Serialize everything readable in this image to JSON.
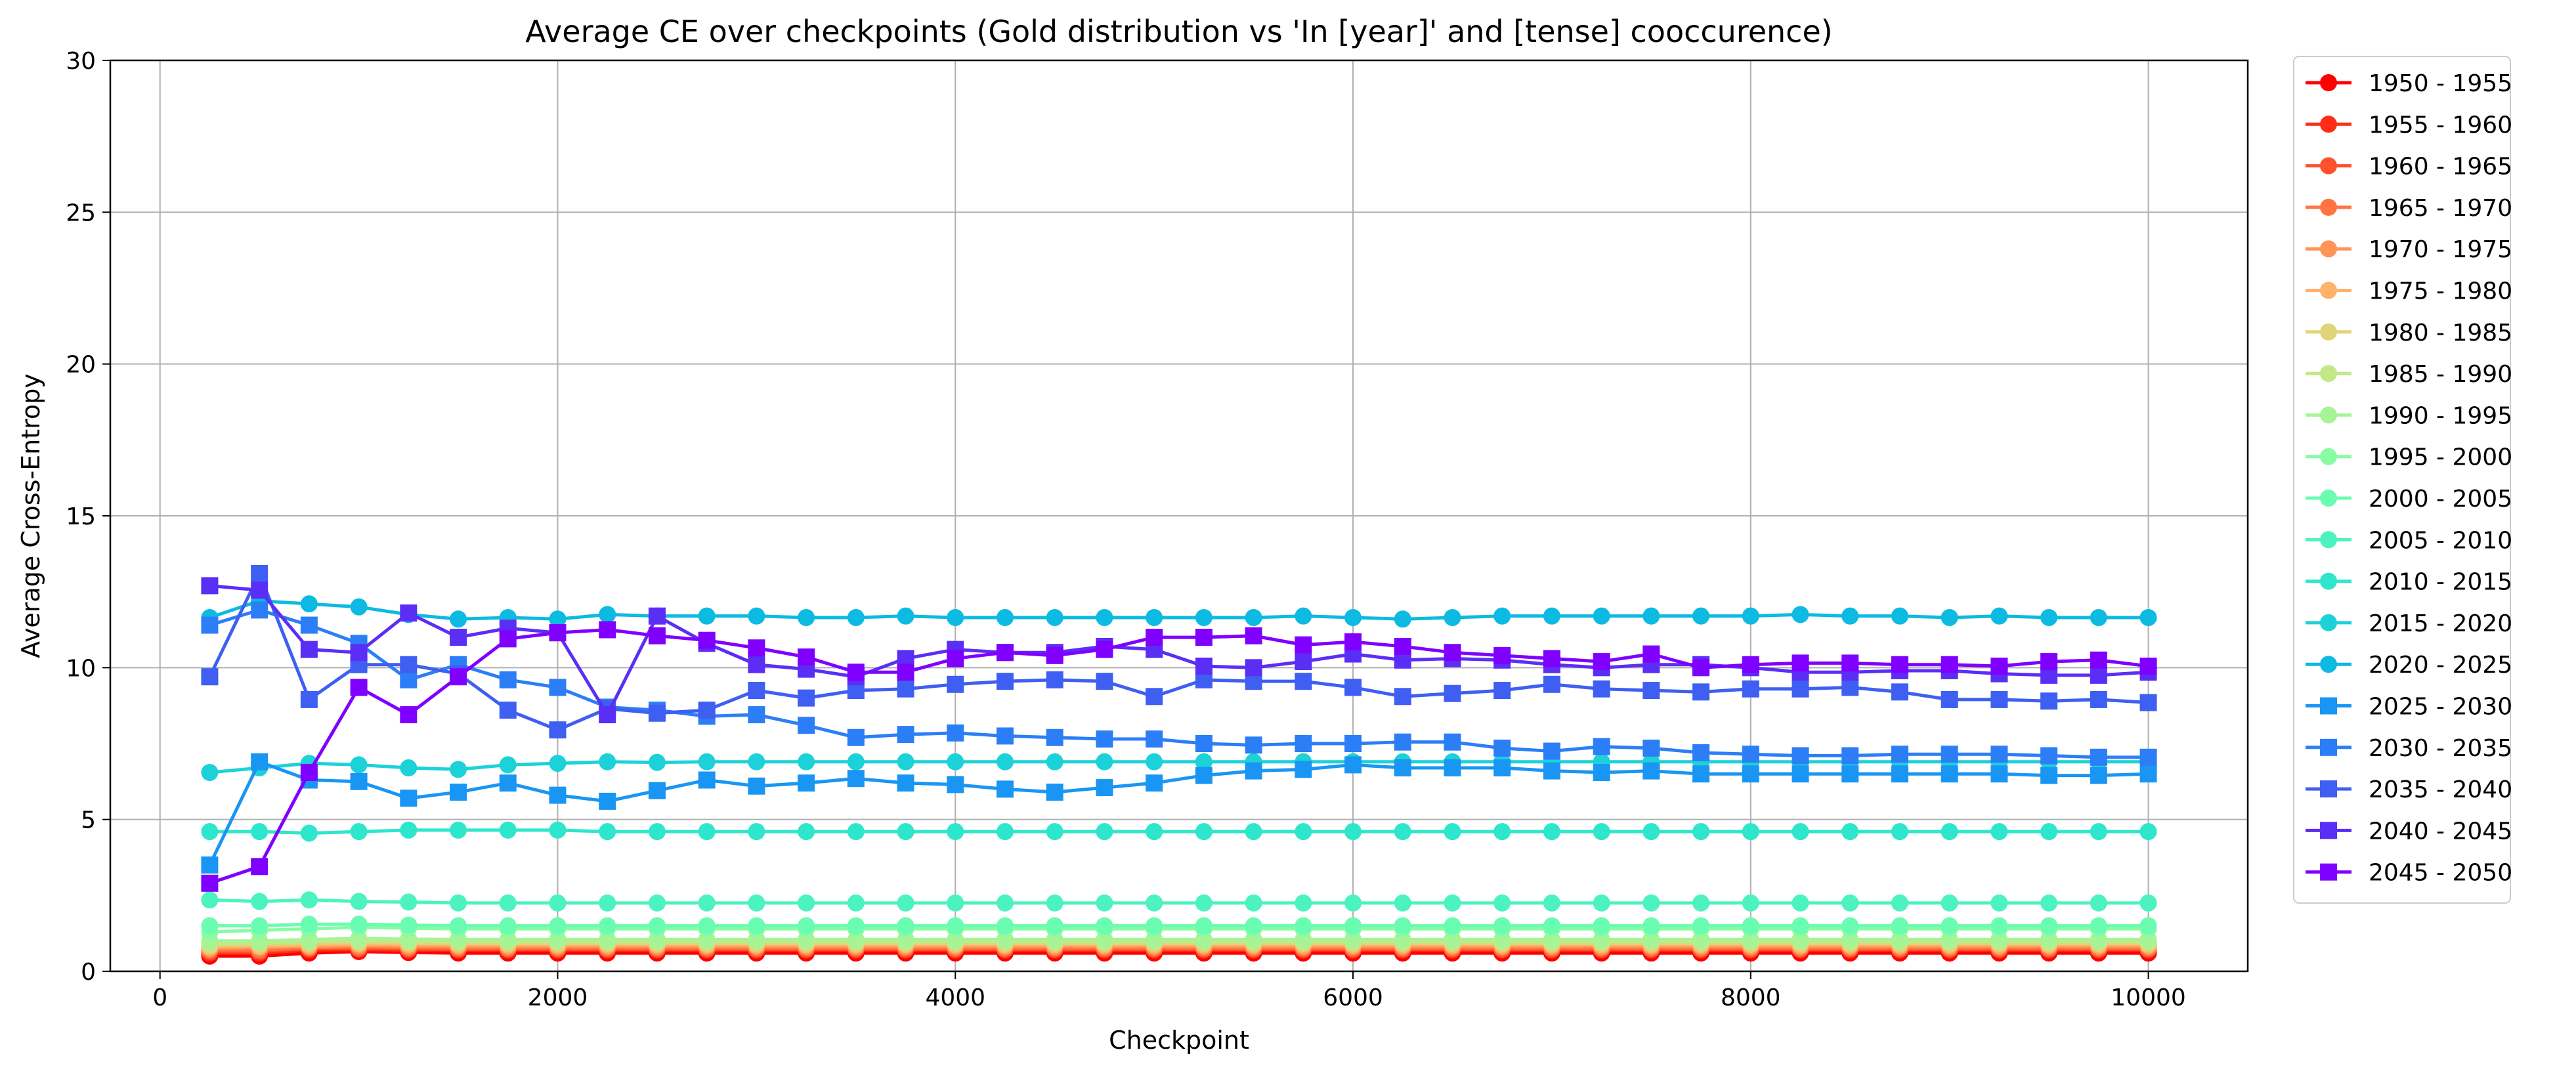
{
  "chart_data": {
    "type": "line",
    "title": "Average CE over checkpoints (Gold distribution vs 'In [year]' and [tense] cooccurence)",
    "xlabel": "Checkpoint",
    "ylabel": "Average Cross-Entropy",
    "xlim": [
      -250,
      10500
    ],
    "ylim": [
      0,
      30
    ],
    "xticks": [
      0,
      2000,
      4000,
      6000,
      8000,
      10000
    ],
    "yticks": [
      0,
      5,
      10,
      15,
      20,
      25,
      30
    ],
    "grid": true,
    "legend_position": "outside-right",
    "x": [
      250,
      500,
      750,
      1000,
      1250,
      1500,
      1750,
      2000,
      2250,
      2500,
      2750,
      3000,
      3250,
      3500,
      3750,
      4000,
      4250,
      4500,
      4750,
      5000,
      5250,
      5500,
      5750,
      6000,
      6250,
      6500,
      6750,
      7000,
      7250,
      7500,
      7750,
      8000,
      8250,
      8500,
      8750,
      9000,
      9250,
      9500,
      9750,
      10000
    ],
    "series": [
      {
        "name": "1950 - 1955",
        "color": "#ff0000",
        "marker": "circle",
        "values": [
          0.5,
          0.5,
          0.6,
          0.65,
          0.62,
          0.6,
          0.6,
          0.6,
          0.6,
          0.6,
          0.6,
          0.6,
          0.6,
          0.6,
          0.6,
          0.6,
          0.6,
          0.6,
          0.6,
          0.6,
          0.6,
          0.6,
          0.6,
          0.6,
          0.6,
          0.6,
          0.6,
          0.6,
          0.6,
          0.6,
          0.6,
          0.6,
          0.6,
          0.6,
          0.6,
          0.6,
          0.6,
          0.6,
          0.6,
          0.6
        ]
      },
      {
        "name": "1955 - 1960",
        "color": "#ff2d17",
        "marker": "circle",
        "values": [
          0.6,
          0.6,
          0.7,
          0.72,
          0.7,
          0.7,
          0.7,
          0.7,
          0.7,
          0.7,
          0.7,
          0.7,
          0.7,
          0.7,
          0.7,
          0.7,
          0.7,
          0.7,
          0.7,
          0.7,
          0.7,
          0.7,
          0.7,
          0.7,
          0.7,
          0.7,
          0.7,
          0.7,
          0.7,
          0.7,
          0.7,
          0.7,
          0.7,
          0.7,
          0.7,
          0.7,
          0.7,
          0.7,
          0.7,
          0.7
        ]
      },
      {
        "name": "1960 - 1965",
        "color": "#ff512c",
        "marker": "circle",
        "values": [
          0.65,
          0.65,
          0.75,
          0.75,
          0.74,
          0.73,
          0.73,
          0.73,
          0.73,
          0.73,
          0.73,
          0.73,
          0.73,
          0.73,
          0.73,
          0.73,
          0.73,
          0.73,
          0.73,
          0.73,
          0.73,
          0.73,
          0.73,
          0.73,
          0.73,
          0.73,
          0.73,
          0.73,
          0.73,
          0.73,
          0.73,
          0.73,
          0.73,
          0.73,
          0.73,
          0.73,
          0.73,
          0.73,
          0.73,
          0.73
        ]
      },
      {
        "name": "1965 - 1970",
        "color": "#ff7442",
        "marker": "circle",
        "values": [
          0.7,
          0.7,
          0.78,
          0.8,
          0.78,
          0.77,
          0.77,
          0.77,
          0.77,
          0.77,
          0.77,
          0.77,
          0.77,
          0.77,
          0.77,
          0.77,
          0.77,
          0.77,
          0.77,
          0.77,
          0.77,
          0.77,
          0.77,
          0.77,
          0.77,
          0.77,
          0.77,
          0.77,
          0.77,
          0.77,
          0.77,
          0.77,
          0.77,
          0.77,
          0.77,
          0.77,
          0.77,
          0.77,
          0.77,
          0.77
        ]
      },
      {
        "name": "1970 - 1975",
        "color": "#ff9456",
        "marker": "circle",
        "values": [
          0.75,
          0.78,
          0.82,
          0.85,
          0.83,
          0.82,
          0.82,
          0.82,
          0.82,
          0.82,
          0.82,
          0.82,
          0.82,
          0.82,
          0.82,
          0.82,
          0.82,
          0.82,
          0.82,
          0.82,
          0.82,
          0.82,
          0.82,
          0.82,
          0.82,
          0.82,
          0.82,
          0.82,
          0.82,
          0.82,
          0.82,
          0.82,
          0.82,
          0.82,
          0.82,
          0.82,
          0.82,
          0.82,
          0.82,
          0.82
        ]
      },
      {
        "name": "1975 - 1980",
        "color": "#ffb26a",
        "marker": "circle",
        "values": [
          0.8,
          0.82,
          0.86,
          0.9,
          0.88,
          0.87,
          0.87,
          0.87,
          0.87,
          0.87,
          0.87,
          0.87,
          0.87,
          0.87,
          0.87,
          0.87,
          0.87,
          0.87,
          0.87,
          0.87,
          0.87,
          0.87,
          0.87,
          0.87,
          0.87,
          0.87,
          0.87,
          0.87,
          0.87,
          0.87,
          0.87,
          0.87,
          0.87,
          0.87,
          0.87,
          0.87,
          0.87,
          0.87,
          0.87,
          0.87
        ]
      },
      {
        "name": "1980 - 1985",
        "color": "#e0d478",
        "marker": "circle",
        "values": [
          0.85,
          0.88,
          0.92,
          0.95,
          0.93,
          0.92,
          0.92,
          0.92,
          0.92,
          0.92,
          0.92,
          0.92,
          0.92,
          0.92,
          0.92,
          0.92,
          0.92,
          0.92,
          0.92,
          0.92,
          0.92,
          0.92,
          0.92,
          0.92,
          0.92,
          0.92,
          0.92,
          0.92,
          0.92,
          0.92,
          0.92,
          0.92,
          0.92,
          0.92,
          0.92,
          0.92,
          0.92,
          0.92,
          0.92,
          0.92
        ]
      },
      {
        "name": "1985 - 1990",
        "color": "#c4e887",
        "marker": "circle",
        "values": [
          0.9,
          0.93,
          0.98,
          1.0,
          0.98,
          0.97,
          0.97,
          0.97,
          0.97,
          0.97,
          0.97,
          0.97,
          0.97,
          0.97,
          0.97,
          0.97,
          0.97,
          0.97,
          0.97,
          0.97,
          0.97,
          0.97,
          0.97,
          0.97,
          0.97,
          0.97,
          0.97,
          0.97,
          0.97,
          0.97,
          0.97,
          0.97,
          0.97,
          0.97,
          0.97,
          0.97,
          0.97,
          0.97,
          0.97,
          0.97
        ]
      },
      {
        "name": "1990 - 1995",
        "color": "#a6f495",
        "marker": "circle",
        "values": [
          1.0,
          1.0,
          1.05,
          1.08,
          1.06,
          1.05,
          1.05,
          1.05,
          1.05,
          1.05,
          1.05,
          1.05,
          1.05,
          1.05,
          1.05,
          1.05,
          1.05,
          1.05,
          1.05,
          1.05,
          1.05,
          1.05,
          1.05,
          1.05,
          1.05,
          1.05,
          1.05,
          1.05,
          1.05,
          1.05,
          1.05,
          1.05,
          1.05,
          1.05,
          1.05,
          1.05,
          1.05,
          1.05,
          1.05,
          1.05
        ]
      },
      {
        "name": "1995 - 2000",
        "color": "#88fca3",
        "marker": "circle",
        "values": [
          1.3,
          1.35,
          1.4,
          1.45,
          1.42,
          1.4,
          1.4,
          1.4,
          1.4,
          1.4,
          1.4,
          1.4,
          1.4,
          1.4,
          1.4,
          1.4,
          1.4,
          1.4,
          1.4,
          1.4,
          1.4,
          1.4,
          1.4,
          1.4,
          1.4,
          1.4,
          1.4,
          1.4,
          1.4,
          1.4,
          1.4,
          1.4,
          1.4,
          1.4,
          1.4,
          1.4,
          1.4,
          1.4,
          1.4,
          1.4
        ]
      },
      {
        "name": "2000 - 2005",
        "color": "#6afcb1",
        "marker": "circle",
        "values": [
          1.5,
          1.5,
          1.55,
          1.55,
          1.52,
          1.5,
          1.5,
          1.5,
          1.5,
          1.5,
          1.5,
          1.5,
          1.5,
          1.5,
          1.5,
          1.5,
          1.5,
          1.5,
          1.5,
          1.5,
          1.5,
          1.5,
          1.5,
          1.5,
          1.5,
          1.5,
          1.5,
          1.5,
          1.5,
          1.5,
          1.5,
          1.5,
          1.5,
          1.5,
          1.5,
          1.5,
          1.5,
          1.5,
          1.5,
          1.5
        ]
      },
      {
        "name": "2005 - 2010",
        "color": "#4cf2bf",
        "marker": "circle",
        "values": [
          2.35,
          2.3,
          2.35,
          2.3,
          2.28,
          2.25,
          2.25,
          2.25,
          2.25,
          2.25,
          2.25,
          2.25,
          2.25,
          2.25,
          2.25,
          2.25,
          2.25,
          2.25,
          2.25,
          2.25,
          2.25,
          2.25,
          2.25,
          2.25,
          2.25,
          2.25,
          2.25,
          2.25,
          2.25,
          2.25,
          2.25,
          2.25,
          2.25,
          2.25,
          2.25,
          2.25,
          2.25,
          2.25,
          2.25,
          2.25
        ]
      },
      {
        "name": "2010 - 2015",
        "color": "#2ee6cc",
        "marker": "circle",
        "values": [
          4.6,
          4.6,
          4.55,
          4.6,
          4.65,
          4.65,
          4.65,
          4.65,
          4.6,
          4.6,
          4.6,
          4.6,
          4.6,
          4.6,
          4.6,
          4.6,
          4.6,
          4.6,
          4.6,
          4.6,
          4.6,
          4.6,
          4.6,
          4.6,
          4.6,
          4.6,
          4.6,
          4.6,
          4.6,
          4.6,
          4.6,
          4.6,
          4.6,
          4.6,
          4.6,
          4.6,
          4.6,
          4.6,
          4.6,
          4.6
        ]
      },
      {
        "name": "2015 - 2020",
        "color": "#1cd2d8",
        "marker": "circle",
        "values": [
          6.55,
          6.7,
          6.85,
          6.8,
          6.7,
          6.65,
          6.8,
          6.85,
          6.9,
          6.88,
          6.9,
          6.9,
          6.9,
          6.9,
          6.9,
          6.9,
          6.9,
          6.9,
          6.9,
          6.9,
          6.9,
          6.9,
          6.9,
          6.9,
          6.9,
          6.9,
          6.9,
          6.9,
          6.9,
          6.9,
          6.9,
          6.9,
          6.9,
          6.9,
          6.9,
          6.9,
          6.9,
          6.9,
          6.9,
          6.9
        ]
      },
      {
        "name": "2020 - 2025",
        "color": "#0cbae2",
        "marker": "circle",
        "values": [
          11.65,
          12.2,
          12.1,
          12.0,
          11.75,
          11.6,
          11.65,
          11.6,
          11.75,
          11.7,
          11.7,
          11.7,
          11.65,
          11.65,
          11.7,
          11.65,
          11.65,
          11.65,
          11.65,
          11.65,
          11.65,
          11.65,
          11.7,
          11.65,
          11.6,
          11.65,
          11.7,
          11.7,
          11.7,
          11.7,
          11.7,
          11.7,
          11.75,
          11.7,
          11.7,
          11.65,
          11.7,
          11.65,
          11.65,
          11.65
        ]
      },
      {
        "name": "2025 - 2030",
        "color": "#1996f3",
        "marker": "square",
        "values": [
          3.5,
          6.9,
          6.3,
          6.25,
          5.7,
          5.9,
          6.2,
          5.8,
          5.6,
          5.95,
          6.3,
          6.1,
          6.2,
          6.35,
          6.2,
          6.15,
          6.0,
          5.9,
          6.05,
          6.2,
          6.45,
          6.6,
          6.65,
          6.8,
          6.7,
          6.7,
          6.7,
          6.6,
          6.55,
          6.6,
          6.5,
          6.5,
          6.5,
          6.5,
          6.5,
          6.5,
          6.5,
          6.45,
          6.45,
          6.5
        ]
      },
      {
        "name": "2030 - 2035",
        "color": "#2c7ef7",
        "marker": "square",
        "values": [
          11.4,
          11.9,
          11.4,
          10.8,
          9.6,
          10.1,
          9.6,
          9.35,
          8.7,
          8.6,
          8.4,
          8.45,
          8.1,
          7.7,
          7.8,
          7.85,
          7.75,
          7.7,
          7.65,
          7.65,
          7.5,
          7.45,
          7.5,
          7.5,
          7.55,
          7.55,
          7.35,
          7.25,
          7.4,
          7.35,
          7.2,
          7.15,
          7.1,
          7.1,
          7.15,
          7.15,
          7.15,
          7.1,
          7.05,
          7.05
        ]
      },
      {
        "name": "2035 - 2040",
        "color": "#3e5ff2",
        "marker": "square",
        "values": [
          9.7,
          13.1,
          8.95,
          10.1,
          10.1,
          9.8,
          8.6,
          7.95,
          8.65,
          8.5,
          8.6,
          9.25,
          9.0,
          9.25,
          9.3,
          9.45,
          9.55,
          9.6,
          9.55,
          9.05,
          9.6,
          9.55,
          9.55,
          9.35,
          9.05,
          9.15,
          9.25,
          9.45,
          9.3,
          9.25,
          9.2,
          9.3,
          9.3,
          9.35,
          9.2,
          8.95,
          8.95,
          8.9,
          8.95,
          8.85
        ]
      },
      {
        "name": "2040 - 2045",
        "color": "#5b2ef6",
        "marker": "square",
        "values": [
          12.7,
          12.55,
          10.6,
          10.5,
          11.8,
          11.0,
          11.3,
          11.15,
          8.45,
          11.7,
          10.8,
          10.1,
          9.95,
          9.7,
          10.3,
          10.6,
          10.5,
          10.5,
          10.7,
          10.6,
          10.05,
          10.0,
          10.2,
          10.45,
          10.25,
          10.3,
          10.25,
          10.1,
          10.0,
          10.1,
          10.1,
          10.0,
          9.85,
          9.85,
          9.9,
          9.9,
          9.8,
          9.75,
          9.75,
          9.85
        ]
      },
      {
        "name": "2045 - 2050",
        "color": "#8000ff",
        "marker": "square",
        "values": [
          2.9,
          3.45,
          6.55,
          9.35,
          8.45,
          9.7,
          10.95,
          11.15,
          11.25,
          11.05,
          10.9,
          10.65,
          10.35,
          9.85,
          9.85,
          10.3,
          10.5,
          10.4,
          10.6,
          11.0,
          11.0,
          11.05,
          10.75,
          10.85,
          10.7,
          10.5,
          10.4,
          10.3,
          10.2,
          10.45,
          10.0,
          10.1,
          10.15,
          10.15,
          10.1,
          10.1,
          10.05,
          10.2,
          10.25,
          10.05
        ]
      }
    ]
  }
}
